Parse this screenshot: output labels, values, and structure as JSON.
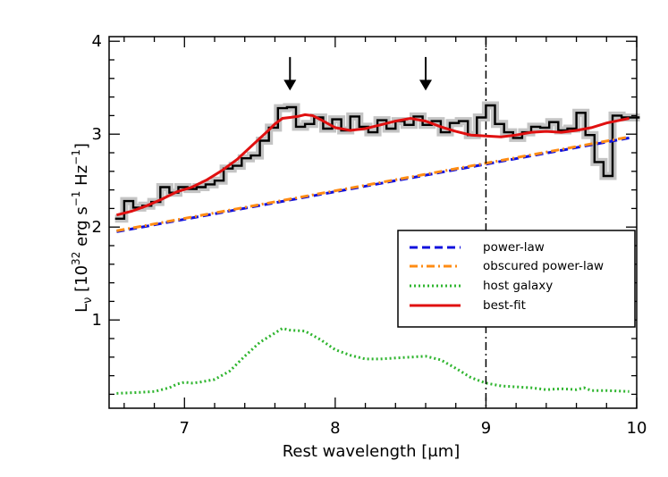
{
  "chart_data": {
    "type": "line",
    "title": "",
    "xlabel": "Rest wavelength [μm]",
    "ylabel": {
      "base": "L",
      "sub": "ν",
      "text1": " [10",
      "sup1": "32",
      "text2": " erg s",
      "sup2": "−1",
      "text3": " Hz",
      "sup3": "−1",
      "text4": "]"
    },
    "xlim": [
      6.5,
      10.0
    ],
    "ylim": [
      0.05,
      4.05
    ],
    "xticks": [
      7,
      8,
      9,
      10
    ],
    "xtick_labels": [
      "7",
      "8",
      "9",
      "10"
    ],
    "yticks": [
      1,
      2,
      3,
      4
    ],
    "ytick_labels": [
      "1",
      "2",
      "3",
      "4"
    ],
    "x_minor_step": 0.2,
    "y_minor_step": 0.2,
    "grid": false,
    "legend_placement": "center-right",
    "vertical_line": {
      "x": 9.0,
      "style": "dash-dot",
      "color": "#000000"
    },
    "arrows": [
      {
        "x": 7.7,
        "y_top": 3.83,
        "y_tip": 3.47
      },
      {
        "x": 8.6,
        "y_top": 3.83,
        "y_tip": 3.47
      }
    ],
    "observed_spectrum": {
      "style": "step",
      "color": "#000000",
      "error_color": "#c4c4c4",
      "x": [
        6.54,
        6.6,
        6.66,
        6.72,
        6.78,
        6.84,
        6.9,
        6.96,
        7.02,
        7.08,
        7.14,
        7.2,
        7.26,
        7.32,
        7.38,
        7.44,
        7.5,
        7.56,
        7.62,
        7.68,
        7.74,
        7.8,
        7.86,
        7.92,
        7.98,
        8.04,
        8.1,
        8.16,
        8.22,
        8.28,
        8.34,
        8.4,
        8.46,
        8.52,
        8.58,
        8.64,
        8.7,
        8.76,
        8.82,
        8.88,
        8.94,
        9.0,
        9.06,
        9.12,
        9.18,
        9.24,
        9.3,
        9.36,
        9.42,
        9.48,
        9.54,
        9.6,
        9.66,
        9.72,
        9.78,
        9.84,
        9.9,
        9.96
      ],
      "y": [
        2.09,
        2.28,
        2.21,
        2.23,
        2.27,
        2.43,
        2.37,
        2.43,
        2.41,
        2.43,
        2.46,
        2.5,
        2.63,
        2.66,
        2.74,
        2.77,
        2.93,
        3.07,
        3.28,
        3.29,
        3.08,
        3.11,
        3.18,
        3.06,
        3.16,
        3.04,
        3.19,
        3.08,
        3.02,
        3.15,
        3.06,
        3.14,
        3.1,
        3.19,
        3.1,
        3.14,
        3.02,
        3.12,
        3.14,
        2.99,
        3.18,
        3.31,
        3.11,
        3.02,
        2.96,
        3.02,
        3.08,
        3.07,
        3.13,
        3.04,
        3.06,
        3.23,
        2.99,
        2.7,
        2.55,
        3.2,
        3.18,
        3.18
      ]
    },
    "series": [
      {
        "name": "power-law",
        "color": "#1010dd",
        "dash": "dashed",
        "x": [
          6.55,
          9.95
        ],
        "y": [
          1.95,
          2.96
        ]
      },
      {
        "name": "obscured power-law",
        "color": "#ff8c14",
        "dash": "dash-dot",
        "x": [
          6.55,
          9.95
        ],
        "y": [
          1.96,
          2.97
        ]
      },
      {
        "name": "host galaxy",
        "color": "#2fb52f",
        "dash": "dotted",
        "x": [
          6.55,
          6.7,
          6.8,
          6.9,
          6.95,
          7.0,
          7.05,
          7.1,
          7.2,
          7.3,
          7.4,
          7.5,
          7.6,
          7.65,
          7.7,
          7.8,
          7.9,
          8.0,
          8.1,
          8.2,
          8.3,
          8.4,
          8.5,
          8.6,
          8.7,
          8.8,
          8.9,
          9.0,
          9.1,
          9.2,
          9.3,
          9.4,
          9.5,
          9.6,
          9.65,
          9.7,
          9.8,
          9.95
        ],
        "y": [
          0.21,
          0.22,
          0.23,
          0.27,
          0.31,
          0.33,
          0.32,
          0.33,
          0.36,
          0.45,
          0.61,
          0.76,
          0.86,
          0.91,
          0.89,
          0.88,
          0.79,
          0.68,
          0.62,
          0.58,
          0.58,
          0.59,
          0.6,
          0.61,
          0.57,
          0.48,
          0.38,
          0.32,
          0.29,
          0.28,
          0.27,
          0.25,
          0.26,
          0.25,
          0.27,
          0.24,
          0.24,
          0.23
        ]
      },
      {
        "name": "best-fit",
        "color": "#e01010",
        "dash": "solid",
        "x": [
          6.55,
          6.65,
          6.75,
          6.85,
          6.95,
          7.05,
          7.15,
          7.25,
          7.35,
          7.45,
          7.55,
          7.6,
          7.65,
          7.7,
          7.75,
          7.8,
          7.85,
          7.9,
          8.0,
          8.1,
          8.2,
          8.3,
          8.4,
          8.5,
          8.6,
          8.7,
          8.8,
          8.9,
          9.0,
          9.1,
          9.2,
          9.3,
          9.4,
          9.5,
          9.6,
          9.7,
          9.8,
          9.95
        ],
        "y": [
          2.13,
          2.17,
          2.23,
          2.3,
          2.38,
          2.43,
          2.51,
          2.61,
          2.73,
          2.88,
          3.03,
          3.11,
          3.17,
          3.18,
          3.19,
          3.21,
          3.2,
          3.16,
          3.07,
          3.04,
          3.06,
          3.1,
          3.14,
          3.17,
          3.14,
          3.08,
          3.03,
          2.99,
          2.98,
          2.97,
          2.99,
          3.02,
          3.03,
          3.02,
          3.04,
          3.07,
          3.12,
          3.17
        ]
      }
    ]
  }
}
